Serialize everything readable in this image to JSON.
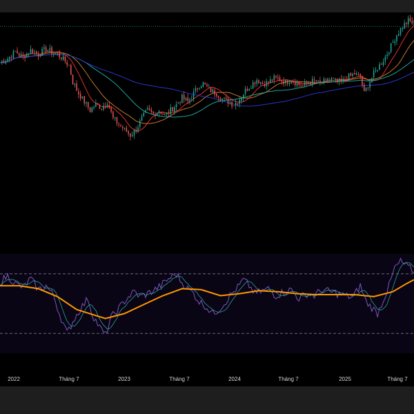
{
  "chart_data": [
    {
      "type": "candlestick",
      "title": "",
      "colors": {
        "up": "#26a69a",
        "down": "#ef5350",
        "ma_fast": "#e0332e",
        "ma_mid": "#c2782f",
        "ma_slow": "#1fa79a",
        "ma_long": "#2a36c8",
        "price_line": "#26a69a"
      },
      "price_line": 1290,
      "ylim": [
        500,
        1340
      ],
      "x_ticks": [
        "2022",
        "Tháng 7",
        "2023",
        "Tháng 7",
        "2024",
        "Tháng 7",
        "2025",
        "Tháng 7"
      ],
      "price_points": [
        [
          0,
          1160
        ],
        [
          4,
          1175
        ],
        [
          8,
          1200
        ],
        [
          12,
          1180
        ],
        [
          16,
          1205
        ],
        [
          20,
          1190
        ],
        [
          24,
          1210
        ],
        [
          28,
          1195
        ],
        [
          32,
          1180
        ],
        [
          36,
          1150
        ],
        [
          38,
          1090
        ],
        [
          41,
          1050
        ],
        [
          44,
          1020
        ],
        [
          47,
          990
        ],
        [
          50,
          1010
        ],
        [
          53,
          1000
        ],
        [
          56,
          1020
        ],
        [
          59,
          960
        ],
        [
          62,
          940
        ],
        [
          65,
          920
        ],
        [
          68,
          900
        ],
        [
          71,
          920
        ],
        [
          74,
          960
        ],
        [
          77,
          990
        ],
        [
          80,
          975
        ],
        [
          83,
          990
        ],
        [
          86,
          970
        ],
        [
          89,
          990
        ],
        [
          92,
          1010
        ],
        [
          95,
          1035
        ],
        [
          98,
          1020
        ],
        [
          101,
          1050
        ],
        [
          104,
          1080
        ],
        [
          106,
          1085
        ],
        [
          110,
          1060
        ],
        [
          113,
          1050
        ],
        [
          116,
          1030
        ],
        [
          119,
          1020
        ],
        [
          122,
          1010
        ],
        [
          125,
          1030
        ],
        [
          128,
          1060
        ],
        [
          131,
          1080
        ],
        [
          134,
          1100
        ],
        [
          137,
          1085
        ],
        [
          140,
          1090
        ],
        [
          143,
          1105
        ],
        [
          146,
          1100
        ],
        [
          149,
          1090
        ],
        [
          152,
          1100
        ],
        [
          155,
          1085
        ],
        [
          158,
          1075
        ],
        [
          161,
          1090
        ],
        [
          164,
          1095
        ],
        [
          167,
          1085
        ],
        [
          170,
          1095
        ],
        [
          173,
          1100
        ],
        [
          176,
          1090
        ],
        [
          179,
          1095
        ],
        [
          182,
          1110
        ],
        [
          185,
          1120
        ],
        [
          188,
          1110
        ],
        [
          190,
          1050
        ],
        [
          192,
          1080
        ],
        [
          195,
          1120
        ],
        [
          198,
          1150
        ],
        [
          201,
          1180
        ],
        [
          204,
          1220
        ],
        [
          207,
          1260
        ],
        [
          210,
          1290
        ],
        [
          213,
          1310
        ],
        [
          216,
          1300
        ]
      ]
    },
    {
      "type": "line",
      "title": "",
      "ylim": [
        0,
        100
      ],
      "levels": [
        80,
        20
      ],
      "colors": {
        "rsi": "#7e57c2",
        "signal": "#26a69a",
        "ma": "#ff9800"
      },
      "rsi_points": [
        [
          0,
          72
        ],
        [
          4,
          78
        ],
        [
          8,
          70
        ],
        [
          12,
          66
        ],
        [
          16,
          75
        ],
        [
          20,
          64
        ],
        [
          24,
          68
        ],
        [
          28,
          58
        ],
        [
          31,
          40
        ],
        [
          35,
          20
        ],
        [
          38,
          32
        ],
        [
          42,
          45
        ],
        [
          46,
          55
        ],
        [
          48,
          40
        ],
        [
          52,
          26
        ],
        [
          55,
          18
        ],
        [
          58,
          36
        ],
        [
          62,
          45
        ],
        [
          66,
          55
        ],
        [
          70,
          62
        ],
        [
          73,
          57
        ],
        [
          77,
          60
        ],
        [
          80,
          63
        ],
        [
          84,
          68
        ],
        [
          88,
          75
        ],
        [
          92,
          80
        ],
        [
          95,
          71
        ],
        [
          98,
          65
        ],
        [
          101,
          60
        ],
        [
          104,
          52
        ],
        [
          107,
          48
        ],
        [
          111,
          40
        ],
        [
          114,
          44
        ],
        [
          117,
          50
        ],
        [
          120,
          58
        ],
        [
          124,
          66
        ],
        [
          127,
          74
        ],
        [
          130,
          68
        ],
        [
          133,
          60
        ],
        [
          136,
          62
        ],
        [
          140,
          65
        ],
        [
          144,
          58
        ],
        [
          148,
          62
        ],
        [
          152,
          64
        ],
        [
          156,
          55
        ],
        [
          160,
          60
        ],
        [
          164,
          58
        ],
        [
          168,
          64
        ],
        [
          172,
          62
        ],
        [
          176,
          60
        ],
        [
          180,
          58
        ],
        [
          184,
          56
        ],
        [
          188,
          68
        ],
        [
          191,
          52
        ],
        [
          194,
          46
        ],
        [
          197,
          40
        ],
        [
          200,
          54
        ],
        [
          203,
          68
        ],
        [
          206,
          86
        ],
        [
          209,
          92
        ],
        [
          212,
          88
        ],
        [
          215,
          84
        ],
        [
          216,
          80
        ]
      ],
      "rsi_ma_points": [
        [
          0,
          68
        ],
        [
          10,
          68
        ],
        [
          20,
          65
        ],
        [
          30,
          57
        ],
        [
          40,
          44
        ],
        [
          50,
          38
        ],
        [
          55,
          35
        ],
        [
          65,
          40
        ],
        [
          75,
          49
        ],
        [
          85,
          58
        ],
        [
          95,
          65
        ],
        [
          105,
          64
        ],
        [
          115,
          58
        ],
        [
          125,
          60
        ],
        [
          135,
          63
        ],
        [
          145,
          62
        ],
        [
          155,
          60
        ],
        [
          165,
          59
        ],
        [
          175,
          59
        ],
        [
          185,
          59
        ],
        [
          195,
          57
        ],
        [
          205,
          62
        ],
        [
          212,
          70
        ],
        [
          216,
          74
        ]
      ]
    }
  ]
}
